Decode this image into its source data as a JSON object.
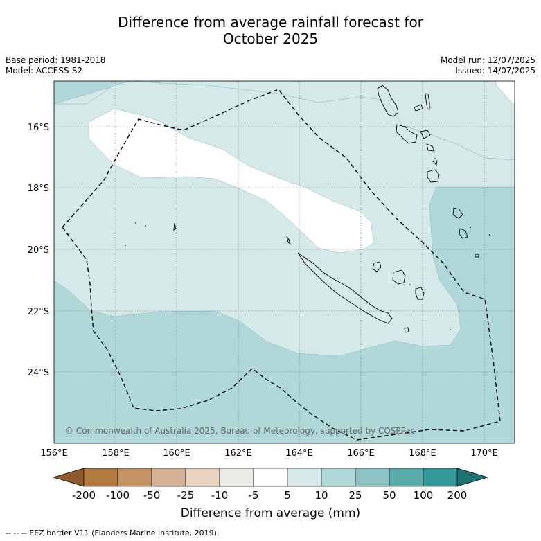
{
  "title_line1": "Difference from average rainfall forecast for",
  "title_line2": "October 2025",
  "base_period": "Base period: 1981-2018",
  "model": "Model: ACCESS-S2",
  "model_run": "Model run: 12/07/2025",
  "issued": "Issued: 14/07/2025",
  "copyright": "© Commonwealth of Australia 2025, Bureau of Meteorology, supported by COSPPac",
  "lon_labels": [
    "156°E",
    "158°E",
    "160°E",
    "162°E",
    "164°E",
    "166°E",
    "168°E",
    "170°E"
  ],
  "lat_labels": [
    "16°S",
    "18°S",
    "20°S",
    "22°S",
    "24°S"
  ],
  "colorbar": {
    "title": "Difference from average (mm)",
    "tick_labels": [
      "-200",
      "-100",
      "-50",
      "-25",
      "-10",
      "-5",
      "5",
      "10",
      "25",
      "50",
      "100",
      "200"
    ],
    "colors": {
      "below_min": "#8c5a2b",
      "bins": [
        "#b07b3f",
        "#c39366",
        "#d5b193",
        "#e7d3bf",
        "#eceae7",
        "#ffffff",
        "#d5e9e9",
        "#b0d8d8",
        "#8fc2c2",
        "#5cacac",
        "#339999"
      ],
      "above_max": "#1f7373"
    }
  },
  "map_colors": {
    "level_5_10": "#d5e9e9",
    "level_10_25": "#b0d8d8",
    "no_change": "#ffffff"
  },
  "footer": "--  --  -- EEZ border V11 (Flanders Marine Institute, 2019)."
}
